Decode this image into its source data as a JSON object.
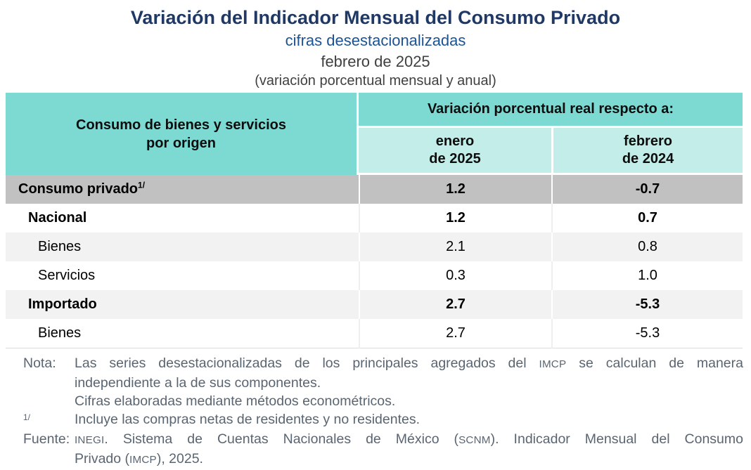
{
  "heading": {
    "title": "Variación del Indicador Mensual del Consumo Privado",
    "subtitle": "cifras desestacionalizadas",
    "period": "febrero de 2025",
    "unit_caption": "(variación porcentual mensual y anual)"
  },
  "table": {
    "row_header": {
      "line1": "Consumo de bienes y servicios",
      "line2": "por origen"
    },
    "group_header": "Variación porcentual real respecto a:",
    "columns": [
      {
        "line1": "enero",
        "line2": "de 2025"
      },
      {
        "line1": "febrero",
        "line2": "de 2024"
      }
    ],
    "rows": [
      {
        "label": "Consumo privado",
        "sup": "1/",
        "values": [
          "1.2",
          "-0.7"
        ]
      },
      {
        "label": "Nacional",
        "values": [
          "1.2",
          "0.7"
        ]
      },
      {
        "label": "Bienes",
        "values": [
          "2.1",
          "0.8"
        ]
      },
      {
        "label": "Servicios",
        "values": [
          "0.3",
          "1.0"
        ]
      },
      {
        "label": "Importado",
        "values": [
          "2.7",
          "-5.3"
        ]
      },
      {
        "label": "Bienes",
        "values": [
          "2.7",
          "-5.3"
        ]
      }
    ]
  },
  "notes": {
    "note_label": "Nota:",
    "note1": {
      "a": "Las series desestacionalizadas de los principales agregados del ",
      "b": "IMCP",
      "c": " se calculan de manera"
    },
    "note1_line2": "independiente a la de sus componentes.",
    "note2": "Cifras elaboradas mediante métodos econométricos.",
    "footnote_label": "1/",
    "footnote_text": "Incluye las compras netas de residentes y no residentes.",
    "source_label": "Fuente:",
    "source1": {
      "a": "INEGI",
      "b": ". Sistema de Cuentas Nacionales de México (",
      "c": "SCNM",
      "d": "). Indicador Mensual del Consumo"
    },
    "source2": {
      "a": "Privado (",
      "b": "IMCP",
      "c": "), 2025."
    }
  },
  "colors": {
    "title_navy": "#1F3864",
    "subtitle_blue": "#1B5393",
    "caption_gray": "#404040",
    "header_teal": "#7DDAD3",
    "subheader_teal": "#C2EDE9",
    "row_gray": "#C1C1C1",
    "row_light_gray": "#F2F2F2",
    "notes_gray": "#5A6572"
  }
}
